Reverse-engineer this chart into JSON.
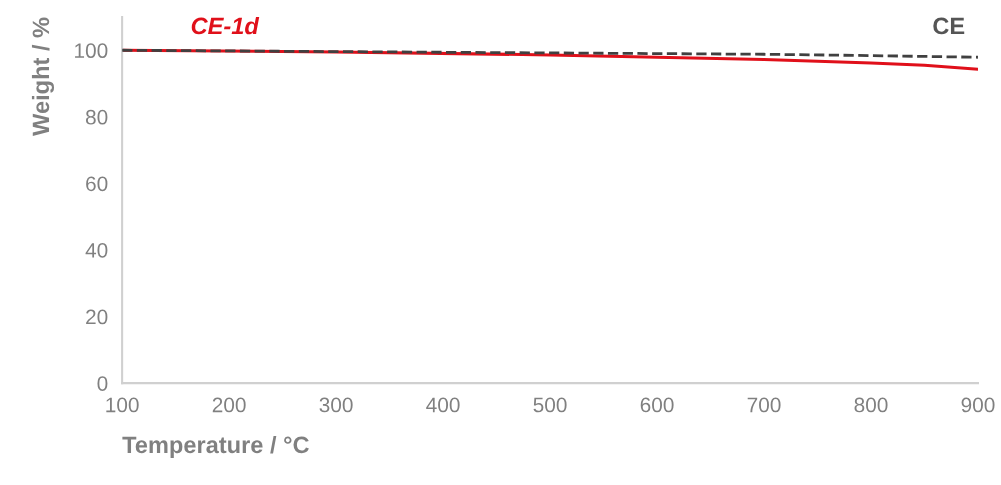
{
  "chart_data": {
    "type": "line",
    "xlabel": "Temperature / °C",
    "ylabel": "Weight / %",
    "xlim": [
      100,
      900
    ],
    "xticks": [
      100,
      200,
      300,
      400,
      500,
      600,
      700,
      800,
      900
    ],
    "ylim": [
      0,
      110
    ],
    "yticks": [
      0,
      20,
      40,
      60,
      80,
      100
    ],
    "grid": false,
    "legend": false,
    "series": [
      {
        "name": "CE",
        "color": "#404040",
        "line_style": "dashed",
        "x": [
          100,
          300,
          500,
          700,
          800,
          900
        ],
        "values": [
          100,
          99.6,
          99.2,
          98.8,
          98.4,
          97.9
        ]
      },
      {
        "name": "CE-1d",
        "color": "#e0101a",
        "line_style": "solid",
        "x": [
          100,
          300,
          500,
          600,
          700,
          800,
          850,
          900
        ],
        "values": [
          100,
          99.5,
          98.6,
          97.9,
          97.2,
          96.2,
          95.5,
          94.3
        ]
      }
    ]
  }
}
